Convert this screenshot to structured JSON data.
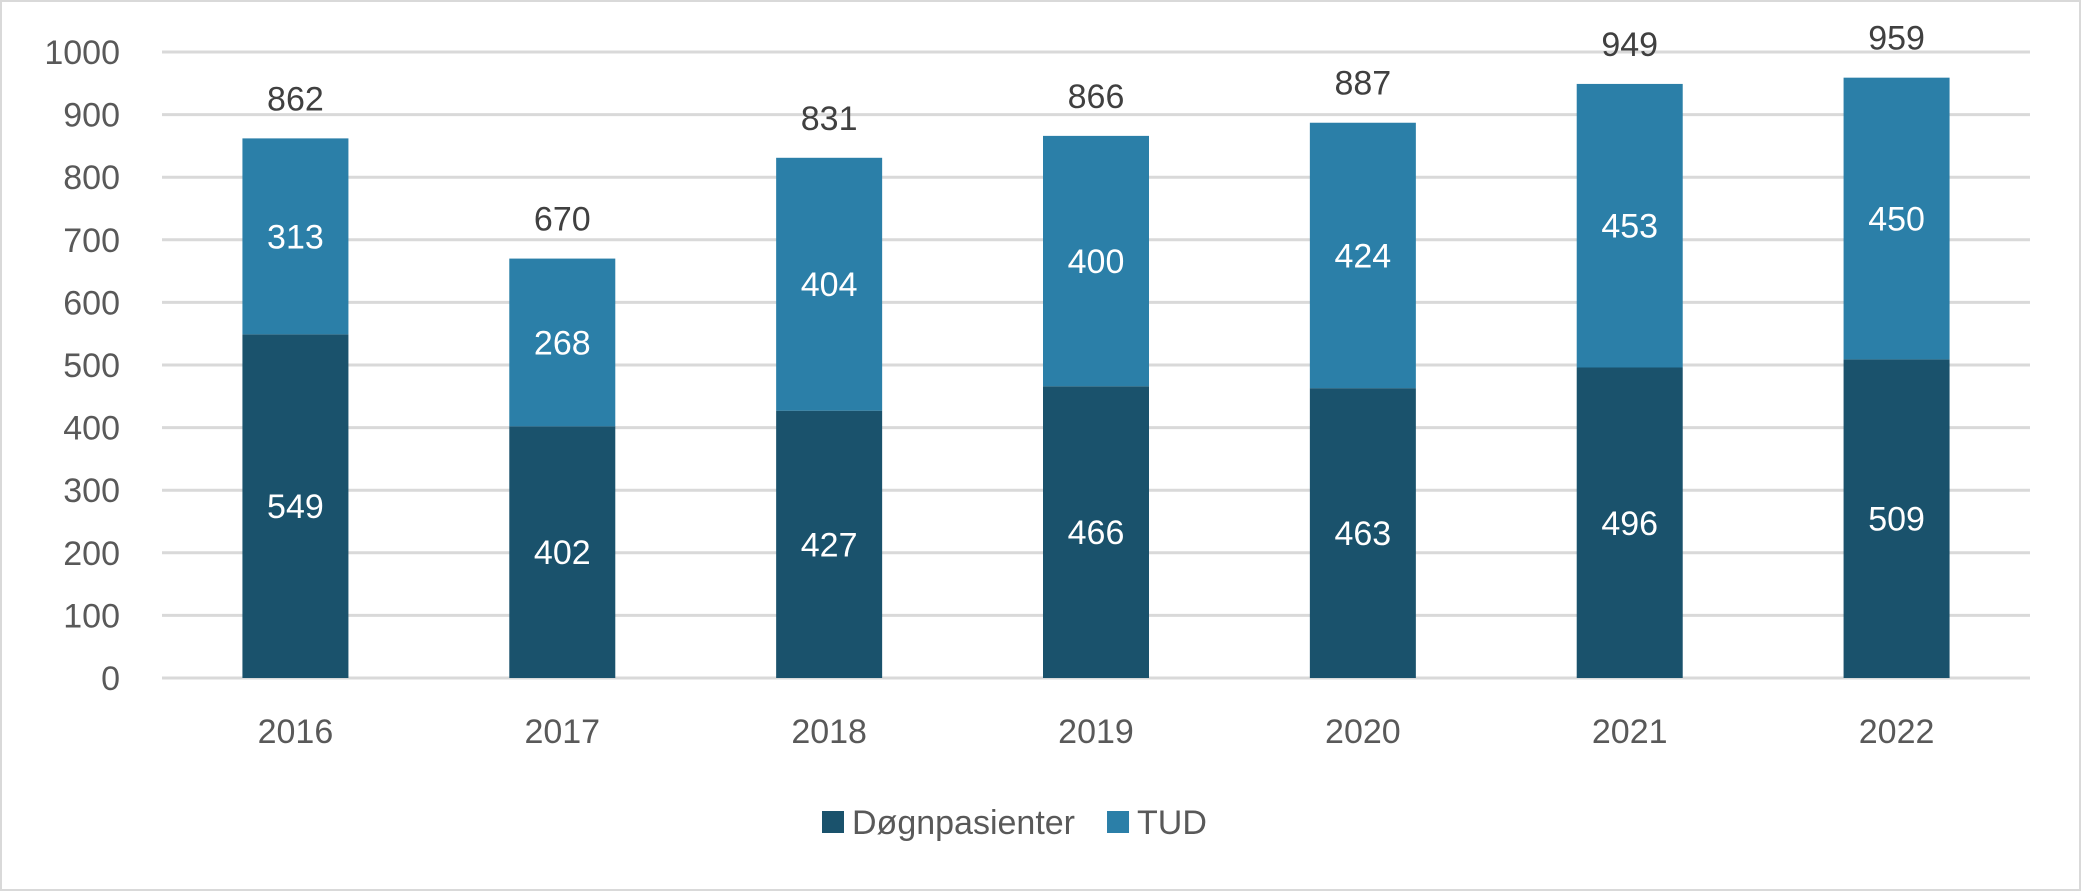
{
  "chart_data": {
    "type": "bar",
    "stacked": true,
    "title": "",
    "xlabel": "",
    "ylabel": "",
    "categories": [
      "2016",
      "2017",
      "2018",
      "2019",
      "2020",
      "2021",
      "2022"
    ],
    "series": [
      {
        "name": "Døgnpasienter",
        "color": "#1a526c",
        "values": [
          549,
          402,
          427,
          466,
          463,
          496,
          509
        ]
      },
      {
        "name": "TUD",
        "color": "#2b7fa8",
        "values": [
          313,
          268,
          404,
          400,
          424,
          453,
          450
        ]
      }
    ],
    "totals": [
      862,
      670,
      831,
      866,
      887,
      949,
      959
    ],
    "ylim": [
      0,
      1000
    ],
    "yticks": [
      "0",
      "100",
      "200",
      "300",
      "400",
      "500",
      "600",
      "700",
      "800",
      "900",
      "1000"
    ],
    "grid": true,
    "legend_position": "bottom"
  }
}
